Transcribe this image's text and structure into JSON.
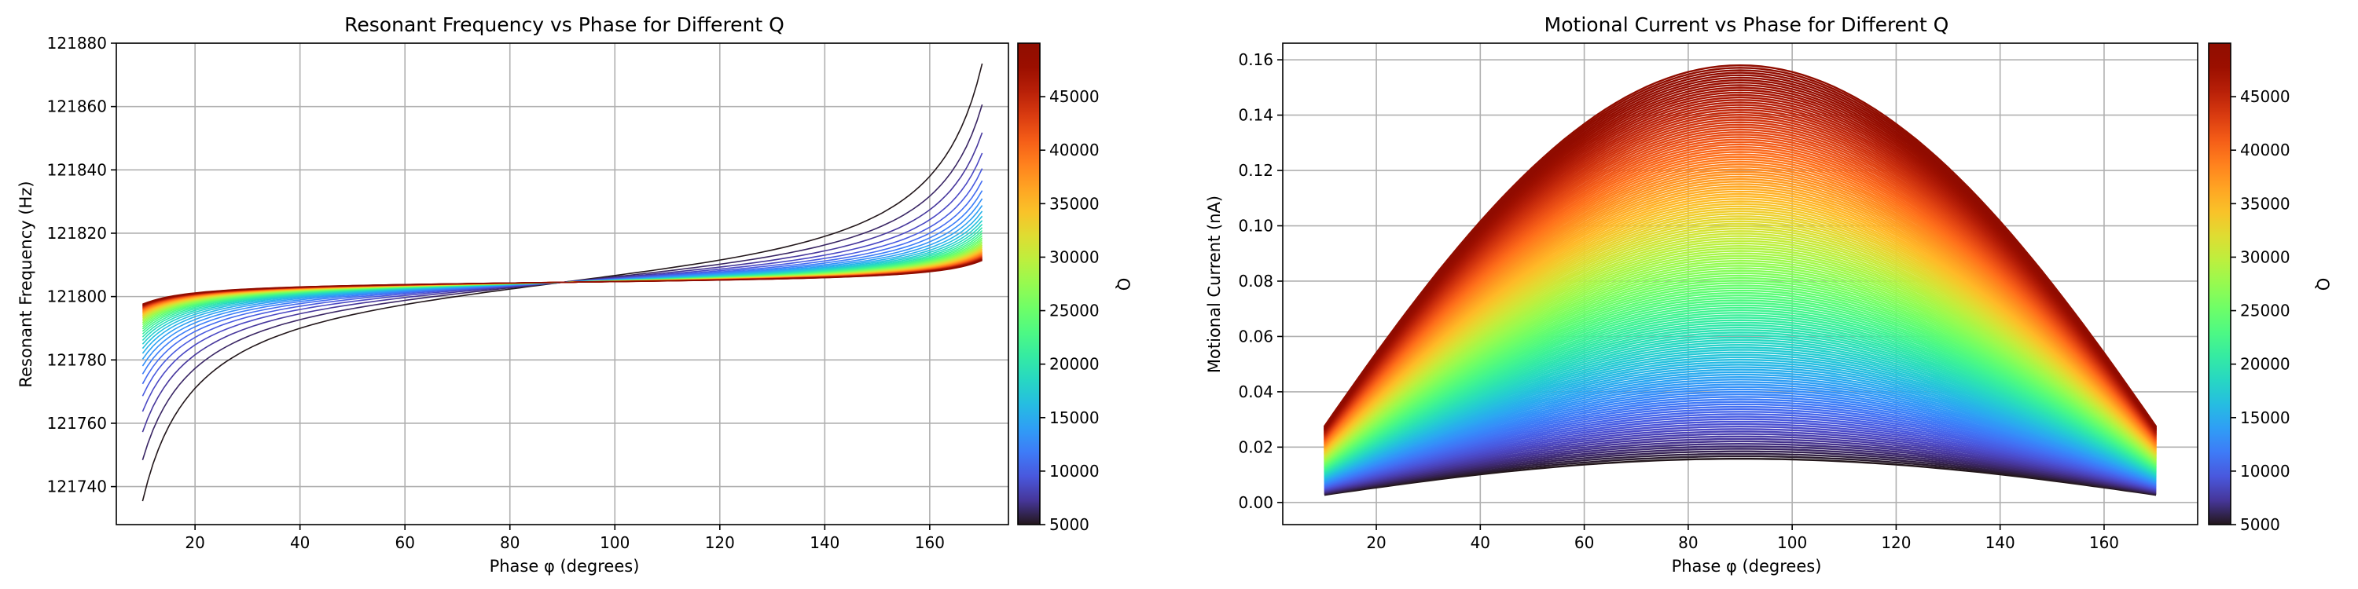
{
  "figure": {
    "colormap": "turbo",
    "chart_data": [
      {
        "type": "line",
        "title": "Resonant Frequency vs Phase for Different Q",
        "xlabel": "Phase φ (degrees)",
        "ylabel": "Resonant Frequency (Hz)",
        "xlim": [
          5,
          175
        ],
        "ylim": [
          121728,
          121880
        ],
        "xticks": [
          20,
          40,
          60,
          80,
          100,
          120,
          140,
          160
        ],
        "yticks": [
          121740,
          121760,
          121780,
          121800,
          121820,
          121840,
          121860,
          121880
        ],
        "grid": true,
        "colorbar": {
          "label": "Q",
          "range": [
            5000,
            50000
          ],
          "ticks": [
            5000,
            10000,
            15000,
            20000,
            25000,
            30000,
            35000,
            40000,
            45000
          ]
        },
        "series_family": {
          "parameter": "Q",
          "from": 5000,
          "to": 50000,
          "count": 40,
          "x_range": [
            10,
            170
          ],
          "description_values": {
            "center_frequency": 121804.5,
            "crossing_phase": 90,
            "at_phase_10": {
              "Q_5000": 121735,
              "Q_50000": 121797
            },
            "at_phase_170": {
              "Q_5000": 121873,
              "Q_50000": 121812
            }
          }
        }
      },
      {
        "type": "line",
        "title": "Motional Current vs Phase for Different Q",
        "xlabel": "Phase φ (degrees)",
        "ylabel": "Motional Current (nA)",
        "xlim": [
          2,
          178
        ],
        "ylim": [
          -0.008,
          0.166
        ],
        "xticks": [
          20,
          40,
          60,
          80,
          100,
          120,
          140,
          160
        ],
        "yticks": [
          0.0,
          0.02,
          0.04,
          0.06,
          0.08,
          0.1,
          0.12,
          0.14,
          0.16
        ],
        "grid": true,
        "colorbar": {
          "label": "Q",
          "range": [
            5000,
            50000
          ],
          "ticks": [
            5000,
            10000,
            15000,
            20000,
            25000,
            30000,
            35000,
            40000,
            45000
          ]
        },
        "series_family": {
          "parameter": "Q",
          "from": 5000,
          "to": 50000,
          "count": 160,
          "x_range": [
            10,
            170
          ],
          "description_values": {
            "peak_phase": 90,
            "peak_current": {
              "Q_5000": 0.0158,
              "Q_50000": 0.158
            },
            "at_phase_10": {
              "Q_5000": 0.0027,
              "Q_50000": 0.027
            }
          }
        }
      }
    ]
  }
}
